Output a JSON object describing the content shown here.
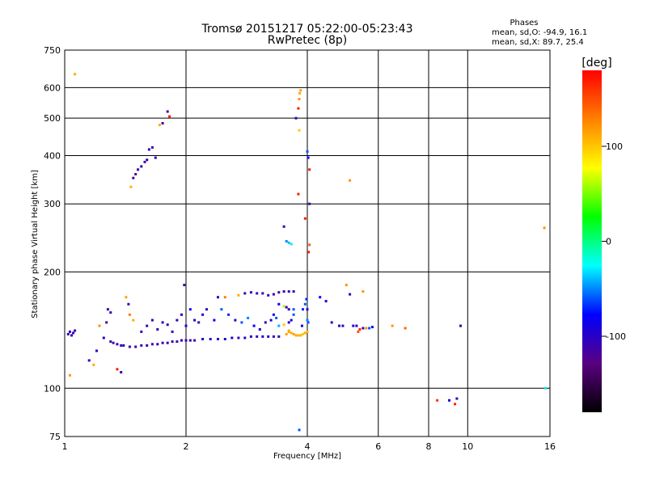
{
  "chart_data": {
    "type": "scatter",
    "title": "Tromsø 20151217 05:22:00-05:23:43",
    "subtitle": "RwPretec (8p)",
    "xlabel": "Frequency [MHz]",
    "ylabel": "Stationary phase Virtual Height [km]",
    "x_scale": "log",
    "y_scale": "log",
    "xlim": [
      1,
      16
    ],
    "ylim": [
      75,
      750
    ],
    "x_ticks": [
      1,
      2,
      4,
      6,
      8,
      10,
      16
    ],
    "x_tick_labels": [
      "1",
      "2",
      "4",
      "6",
      "8",
      "10",
      "16"
    ],
    "y_ticks": [
      75,
      100,
      200,
      300,
      400,
      500,
      600,
      750
    ],
    "y_tick_labels": [
      "75",
      "100",
      "200",
      "300",
      "400",
      "500",
      "600",
      "750"
    ],
    "grid": true,
    "colorbar": {
      "label": "[deg]",
      "range": [
        -180,
        180
      ],
      "ticks": [
        100,
        0,
        -100
      ],
      "tick_labels": [
        "100",
        "0",
        "-100"
      ],
      "stops": [
        "#000000",
        "#5a0080",
        "#0000ff",
        "#00ffff",
        "#00ff00",
        "#ffff00",
        "#ff8000",
        "#ff0000"
      ]
    },
    "stats": {
      "heading": "Phases",
      "line1": "mean, sd,O: -94.9, 16.1",
      "line2": "mean, sd,X:  89.7, 25.4"
    },
    "points": [
      [
        1.02,
        138,
        -110
      ],
      [
        1.03,
        140,
        -105
      ],
      [
        1.05,
        139,
        -100
      ],
      [
        1.06,
        141,
        -110
      ],
      [
        1.04,
        137,
        -115
      ],
      [
        1.03,
        108,
        120
      ],
      [
        1.06,
        650,
        110
      ],
      [
        1.15,
        118,
        -110
      ],
      [
        1.2,
        125,
        -105
      ],
      [
        1.25,
        135,
        -100
      ],
      [
        1.22,
        145,
        120
      ],
      [
        1.27,
        148,
        -120
      ],
      [
        1.28,
        160,
        -110
      ],
      [
        1.3,
        157,
        -105
      ],
      [
        1.18,
        115,
        110
      ],
      [
        1.35,
        112,
        170
      ],
      [
        1.38,
        110,
        -110
      ],
      [
        1.42,
        172,
        115
      ],
      [
        1.44,
        165,
        -115
      ],
      [
        1.45,
        155,
        130
      ],
      [
        1.48,
        150,
        110
      ],
      [
        1.46,
        332,
        110
      ],
      [
        1.48,
        350,
        -120
      ],
      [
        1.5,
        358,
        -125
      ],
      [
        1.52,
        368,
        -110
      ],
      [
        1.55,
        375,
        -100
      ],
      [
        1.58,
        385,
        -115
      ],
      [
        1.6,
        390,
        -110
      ],
      [
        1.62,
        415,
        -100
      ],
      [
        1.65,
        420,
        -110
      ],
      [
        1.68,
        395,
        -105
      ],
      [
        1.72,
        480,
        110
      ],
      [
        1.75,
        485,
        -110
      ],
      [
        1.8,
        520,
        -120
      ],
      [
        1.82,
        505,
        170
      ],
      [
        1.3,
        132,
        -110
      ],
      [
        1.32,
        131,
        -115
      ],
      [
        1.35,
        130,
        -105
      ],
      [
        1.38,
        129,
        -110
      ],
      [
        1.4,
        129,
        -100
      ],
      [
        1.45,
        128,
        -115
      ],
      [
        1.5,
        128,
        -110
      ],
      [
        1.55,
        129,
        -105
      ],
      [
        1.6,
        129,
        -110
      ],
      [
        1.65,
        130,
        -115
      ],
      [
        1.7,
        130,
        -100
      ],
      [
        1.75,
        131,
        -110
      ],
      [
        1.8,
        131,
        -105
      ],
      [
        1.85,
        132,
        -110
      ],
      [
        1.9,
        132,
        -115
      ],
      [
        1.95,
        133,
        -100
      ],
      [
        2.0,
        133,
        -110
      ],
      [
        2.05,
        133,
        -105
      ],
      [
        2.1,
        133,
        -110
      ],
      [
        2.2,
        134,
        -90
      ],
      [
        2.3,
        134,
        -100
      ],
      [
        2.4,
        134,
        -110
      ],
      [
        2.5,
        134,
        -95
      ],
      [
        2.6,
        135,
        -100
      ],
      [
        2.7,
        135,
        -110
      ],
      [
        2.8,
        135,
        -105
      ],
      [
        2.9,
        136,
        -100
      ],
      [
        3.0,
        136,
        -110
      ],
      [
        3.1,
        136,
        -95
      ],
      [
        3.2,
        136,
        -100
      ],
      [
        3.3,
        136,
        -110
      ],
      [
        3.4,
        136,
        -105
      ],
      [
        1.55,
        140,
        -110
      ],
      [
        1.6,
        145,
        -115
      ],
      [
        1.65,
        150,
        -105
      ],
      [
        1.7,
        142,
        -110
      ],
      [
        1.75,
        148,
        -100
      ],
      [
        1.8,
        146,
        -110
      ],
      [
        1.85,
        140,
        -105
      ],
      [
        1.9,
        150,
        -110
      ],
      [
        1.95,
        155,
        -100
      ],
      [
        2.0,
        145,
        -90
      ],
      [
        2.05,
        160,
        -80
      ],
      [
        2.1,
        150,
        -100
      ],
      [
        2.15,
        148,
        -110
      ],
      [
        2.2,
        155,
        -90
      ],
      [
        1.98,
        185,
        -110
      ],
      [
        2.25,
        160,
        -100
      ],
      [
        2.35,
        150,
        -80
      ],
      [
        2.45,
        160,
        -60
      ],
      [
        2.55,
        155,
        -70
      ],
      [
        2.65,
        150,
        -100
      ],
      [
        2.75,
        148,
        -60
      ],
      [
        2.85,
        152,
        -50
      ],
      [
        2.95,
        145,
        -80
      ],
      [
        3.05,
        142,
        -100
      ],
      [
        3.15,
        148,
        -110
      ],
      [
        3.25,
        150,
        -90
      ],
      [
        3.3,
        155,
        -80
      ],
      [
        3.35,
        152,
        -60
      ],
      [
        2.4,
        172,
        -100
      ],
      [
        2.5,
        172,
        130
      ],
      [
        2.7,
        174,
        110
      ],
      [
        2.8,
        176,
        -110
      ],
      [
        2.9,
        177,
        -105
      ],
      [
        3.0,
        176,
        -110
      ],
      [
        3.1,
        176,
        -100
      ],
      [
        3.2,
        174,
        -110
      ],
      [
        3.3,
        175,
        -115
      ],
      [
        3.4,
        177,
        -110
      ],
      [
        3.5,
        178,
        -105
      ],
      [
        3.6,
        178,
        -110
      ],
      [
        3.7,
        178,
        -100
      ],
      [
        3.4,
        165,
        -80
      ],
      [
        3.5,
        163,
        60
      ],
      [
        3.55,
        162,
        -110
      ],
      [
        3.6,
        160,
        -105
      ],
      [
        3.7,
        160,
        -60
      ],
      [
        3.4,
        145,
        -40
      ],
      [
        3.5,
        146,
        100
      ],
      [
        3.6,
        148,
        -100
      ],
      [
        3.65,
        150,
        -90
      ],
      [
        3.7,
        155,
        -60
      ],
      [
        3.6,
        140,
        120
      ],
      [
        3.65,
        139,
        110
      ],
      [
        3.7,
        138,
        115
      ],
      [
        3.75,
        137,
        110
      ],
      [
        3.8,
        137,
        105
      ],
      [
        3.85,
        137,
        110
      ],
      [
        3.9,
        138,
        100
      ],
      [
        3.95,
        139,
        110
      ],
      [
        4.0,
        140,
        105
      ],
      [
        3.55,
        138,
        115
      ],
      [
        3.6,
        141,
        110
      ],
      [
        3.88,
        145,
        -80
      ],
      [
        3.9,
        160,
        -70
      ],
      [
        3.95,
        165,
        -60
      ],
      [
        4.0,
        150,
        -50
      ],
      [
        4.02,
        148,
        -60
      ],
      [
        3.98,
        170,
        -70
      ],
      [
        4.0,
        160,
        -100
      ],
      [
        3.5,
        262,
        -110
      ],
      [
        3.6,
        238,
        -40
      ],
      [
        3.65,
        236,
        -30
      ],
      [
        3.55,
        240,
        -50
      ],
      [
        3.8,
        318,
        170
      ],
      [
        3.75,
        500,
        -110
      ],
      [
        3.8,
        530,
        170
      ],
      [
        3.82,
        560,
        120
      ],
      [
        3.83,
        580,
        110
      ],
      [
        3.85,
        590,
        115
      ],
      [
        3.82,
        465,
        100
      ],
      [
        4.0,
        410,
        -60
      ],
      [
        4.02,
        395,
        -80
      ],
      [
        4.05,
        368,
        170
      ],
      [
        4.05,
        300,
        -110
      ],
      [
        4.05,
        235,
        140
      ],
      [
        4.03,
        225,
        170
      ],
      [
        3.95,
        275,
        170
      ],
      [
        3.82,
        78,
        -60
      ],
      [
        4.3,
        172,
        -80
      ],
      [
        4.45,
        168,
        -100
      ],
      [
        4.6,
        148,
        -100
      ],
      [
        4.8,
        145,
        -110
      ],
      [
        4.9,
        145,
        -100
      ],
      [
        5.0,
        185,
        120
      ],
      [
        5.1,
        175,
        -110
      ],
      [
        5.2,
        145,
        -90
      ],
      [
        5.3,
        145,
        -100
      ],
      [
        5.35,
        140,
        150
      ],
      [
        5.4,
        142,
        165
      ],
      [
        5.5,
        143,
        -110
      ],
      [
        5.6,
        143,
        120
      ],
      [
        5.7,
        143,
        -60
      ],
      [
        5.8,
        144,
        -80
      ],
      [
        5.1,
        345,
        120
      ],
      [
        5.5,
        178,
        120
      ],
      [
        6.5,
        145,
        120
      ],
      [
        7.0,
        143,
        140
      ],
      [
        8.4,
        93,
        160
      ],
      [
        9.0,
        93,
        -90
      ],
      [
        9.3,
        91,
        170
      ],
      [
        9.4,
        94,
        -110
      ],
      [
        9.6,
        145,
        -110
      ],
      [
        15.5,
        260,
        120
      ],
      [
        15.6,
        100,
        -30
      ]
    ]
  }
}
